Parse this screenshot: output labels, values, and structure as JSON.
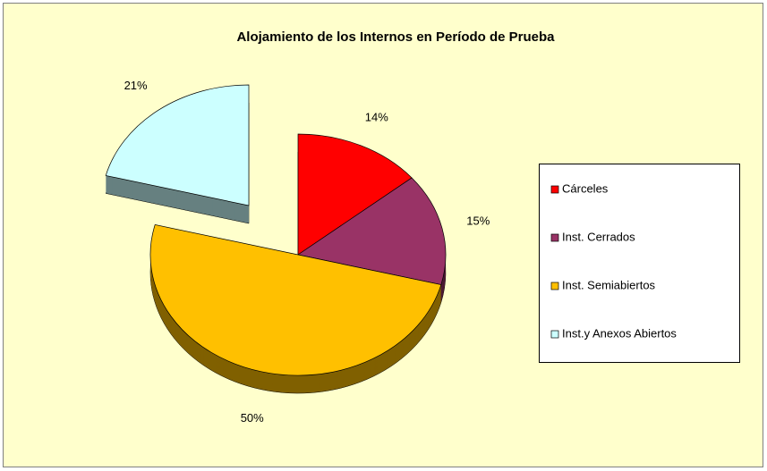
{
  "chart_data": {
    "type": "pie",
    "title": "Alojamiento de los Internos en Período de Prueba",
    "categories": [
      "Cárceles",
      "Inst. Cerrados",
      "Inst. Semiabiertos",
      "Inst.y Anexos Abiertos"
    ],
    "values": [
      14,
      15,
      50,
      21
    ],
    "value_labels": [
      "14%",
      "15%",
      "50%",
      "21%"
    ],
    "colors": [
      "#ff0000",
      "#993366",
      "#ffc000",
      "#ccffff"
    ],
    "legend": "right"
  }
}
